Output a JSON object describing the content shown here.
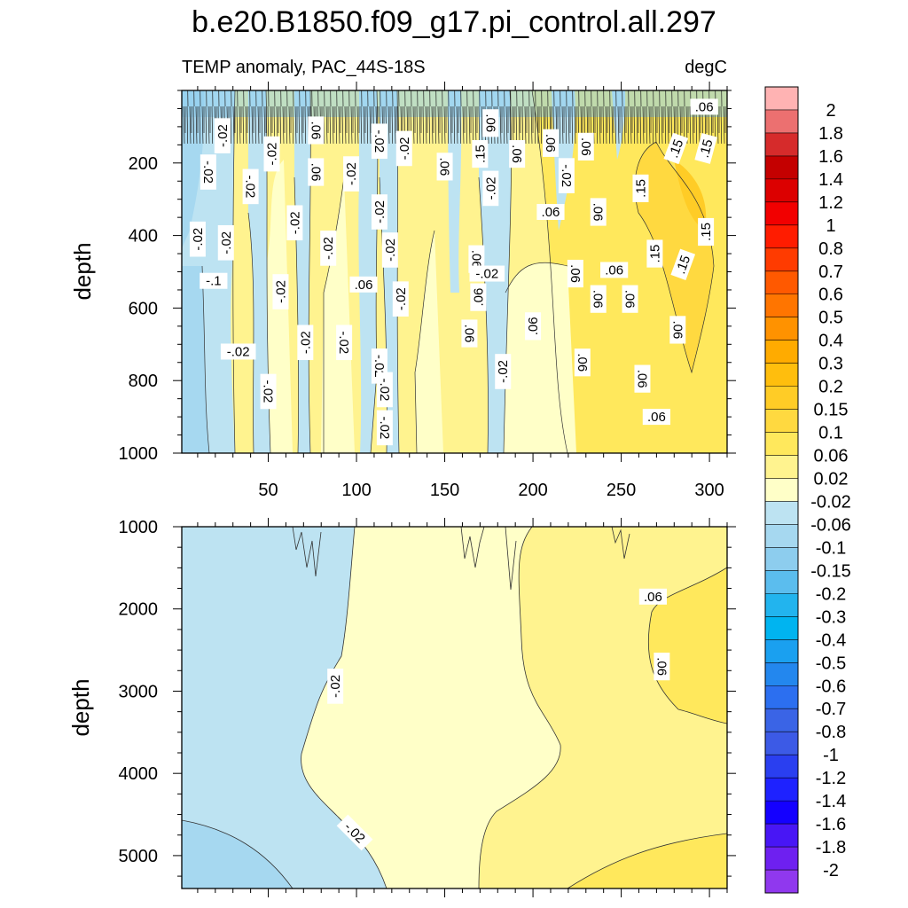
{
  "figure": {
    "title": "b.e20.B1850.f09_g17.pi_control.all.297",
    "subtitle_left": "TEMP anomaly, PAC_44S-18S",
    "subtitle_right": "degC"
  },
  "chart_data": [
    {
      "type": "heatmap",
      "panel": "upper",
      "ylabel": "depth",
      "xlabel": "",
      "xlim": [
        1,
        310
      ],
      "ylim": [
        0,
        1000
      ],
      "y_inverted": true,
      "xticks": [
        50,
        100,
        150,
        200,
        250,
        300
      ],
      "yticks": [
        200,
        400,
        600,
        800,
        1000
      ],
      "contour_labels": [
        {
          "text": "-.02",
          "x": 24,
          "y": 125,
          "rotation": -90
        },
        {
          "text": "-.02",
          "x": 16,
          "y": 225,
          "rotation": 90
        },
        {
          "text": "-.02",
          "x": 40,
          "y": 265,
          "rotation": 90
        },
        {
          "text": "-.02",
          "x": 10,
          "y": 410,
          "rotation": -90
        },
        {
          "text": "-.02",
          "x": 26,
          "y": 420,
          "rotation": -90
        },
        {
          "text": "-.1",
          "x": 19,
          "y": 525,
          "rotation": 0
        },
        {
          "text": "-.02",
          "x": 33,
          "y": 720,
          "rotation": 0
        },
        {
          "text": "-.02",
          "x": 50,
          "y": 830,
          "rotation": 90
        },
        {
          "text": "-.02",
          "x": 52,
          "y": 175,
          "rotation": -90
        },
        {
          "text": "-.02",
          "x": 57,
          "y": 555,
          "rotation": -90
        },
        {
          "text": "-.02",
          "x": 65,
          "y": 365,
          "rotation": -90
        },
        {
          "text": "-.02",
          "x": 71,
          "y": 695,
          "rotation": -90
        },
        {
          "text": ".06",
          "x": 77,
          "y": 110,
          "rotation": 90
        },
        {
          "text": ".06",
          "x": 77,
          "y": 225,
          "rotation": 90
        },
        {
          "text": "-.02",
          "x": 84,
          "y": 435,
          "rotation": -90
        },
        {
          "text": "-.02",
          "x": 97,
          "y": 230,
          "rotation": -90
        },
        {
          "text": "-.02",
          "x": 93,
          "y": 695,
          "rotation": 90
        },
        {
          "text": ".06",
          "x": 104,
          "y": 535,
          "rotation": 0
        },
        {
          "text": "-.02",
          "x": 113,
          "y": 760,
          "rotation": 90
        },
        {
          "text": "-.02",
          "x": 113,
          "y": 140,
          "rotation": 90
        },
        {
          "text": "-.02",
          "x": 113,
          "y": 335,
          "rotation": -90
        },
        {
          "text": "-.02",
          "x": 116,
          "y": 825,
          "rotation": 90
        },
        {
          "text": "-.02",
          "x": 116,
          "y": 930,
          "rotation": 90
        },
        {
          "text": "-.02",
          "x": 119,
          "y": 440,
          "rotation": -90
        },
        {
          "text": "-.02",
          "x": 125,
          "y": 575,
          "rotation": -90
        },
        {
          "text": "-.02",
          "x": 127,
          "y": 160,
          "rotation": -90
        },
        {
          "text": ".06",
          "x": 150,
          "y": 210,
          "rotation": 90
        },
        {
          "text": ".06",
          "x": 168,
          "y": 465,
          "rotation": 90
        },
        {
          "text": ".06",
          "x": 169,
          "y": 570,
          "rotation": -90
        },
        {
          "text": ".06",
          "x": 164,
          "y": 670,
          "rotation": 90
        },
        {
          "text": ".15",
          "x": 170,
          "y": 175,
          "rotation": -90
        },
        {
          "text": ".06",
          "x": 176,
          "y": 90,
          "rotation": 90
        },
        {
          "text": "-.02",
          "x": 176,
          "y": 270,
          "rotation": -90
        },
        {
          "text": "-.02",
          "x": 174,
          "y": 505,
          "rotation": 0
        },
        {
          "text": "-.02",
          "x": 183,
          "y": 775,
          "rotation": -90
        },
        {
          "text": ".06",
          "x": 191,
          "y": 175,
          "rotation": 90
        },
        {
          "text": ".06",
          "x": 200,
          "y": 650,
          "rotation": -90
        },
        {
          "text": ".06",
          "x": 210,
          "y": 145,
          "rotation": 90
        },
        {
          "text": "-.02",
          "x": 219,
          "y": 235,
          "rotation": 90
        },
        {
          "text": ".06",
          "x": 210,
          "y": 335,
          "rotation": 0
        },
        {
          "text": ".06",
          "x": 224,
          "y": 505,
          "rotation": 90
        },
        {
          "text": ".06",
          "x": 230,
          "y": 155,
          "rotation": 90
        },
        {
          "text": ".06",
          "x": 237,
          "y": 335,
          "rotation": 90
        },
        {
          "text": ".06",
          "x": 237,
          "y": 575,
          "rotation": 90
        },
        {
          "text": ".06",
          "x": 228,
          "y": 750,
          "rotation": 90
        },
        {
          "text": ".06",
          "x": 246,
          "y": 495,
          "rotation": 0
        },
        {
          "text": ".15",
          "x": 261,
          "y": 270,
          "rotation": -90
        },
        {
          "text": ".06",
          "x": 255,
          "y": 575,
          "rotation": 90
        },
        {
          "text": ".06",
          "x": 262,
          "y": 795,
          "rotation": 90
        },
        {
          "text": ".15",
          "x": 269,
          "y": 450,
          "rotation": -90
        },
        {
          "text": ".06",
          "x": 270,
          "y": 900,
          "rotation": 0
        },
        {
          "text": ".15",
          "x": 281,
          "y": 160,
          "rotation": -70
        },
        {
          "text": ".06",
          "x": 297,
          "y": 45,
          "rotation": 0
        },
        {
          "text": ".15",
          "x": 298,
          "y": 160,
          "rotation": -75
        },
        {
          "text": ".15",
          "x": 298,
          "y": 390,
          "rotation": -90
        },
        {
          "text": ".15",
          "x": 285,
          "y": 480,
          "rotation": -70
        },
        {
          "text": ".06",
          "x": 282,
          "y": 660,
          "rotation": 90
        }
      ]
    },
    {
      "type": "heatmap",
      "panel": "lower",
      "ylabel": "depth",
      "xlabel": "",
      "xlim": [
        1,
        310
      ],
      "ylim": [
        1000,
        5400
      ],
      "y_inverted": true,
      "xticks": [],
      "yticks": [
        1000,
        2000,
        3000,
        4000,
        5000
      ],
      "contour_labels": [
        {
          "text": ".06",
          "x": 268,
          "y": 1850,
          "rotation": 0
        },
        {
          "text": ".06",
          "x": 273,
          "y": 2700,
          "rotation": 90
        },
        {
          "text": "-.02",
          "x": 88,
          "y": 2940,
          "rotation": -90
        },
        {
          "text": "-.02",
          "x": 99,
          "y": 4720,
          "rotation": 45
        }
      ]
    }
  ],
  "colorbar": {
    "levels": [
      "2",
      "1.8",
      "1.6",
      "1.4",
      "1.2",
      "1",
      "0.8",
      "0.7",
      "0.6",
      "0.5",
      "0.4",
      "0.3",
      "0.2",
      "0.15",
      "0.1",
      "0.06",
      "0.02",
      "-0.02",
      "-0.06",
      "-0.1",
      "-0.15",
      "-0.2",
      "-0.3",
      "-0.4",
      "-0.5",
      "-0.6",
      "-0.7",
      "-0.8",
      "-1",
      "-1.2",
      "-1.4",
      "-1.6",
      "-1.8",
      "-2"
    ],
    "colors": [
      "#ffb3b3",
      "#ec7070",
      "#d62b2b",
      "#c40000",
      "#dc0000",
      "#f20000",
      "#ff1c00",
      "#ff3b00",
      "#ff5900",
      "#ff7500",
      "#ff9200",
      "#ffab00",
      "#ffbe0d",
      "#ffcc26",
      "#ffd940",
      "#ffe85c",
      "#fff38f",
      "#ffffc8",
      "#bde3f2",
      "#a6d8f0",
      "#8dcdee",
      "#5bbdee",
      "#22b4ee",
      "#00b4f0",
      "#1aa0f0",
      "#2387ee",
      "#2c6ff0",
      "#3a64e6",
      "#3c5ae6",
      "#2a3ff0",
      "#1e22ff",
      "#1400ff",
      "#4816f5",
      "#6e20f0",
      "#9038ee"
    ]
  }
}
